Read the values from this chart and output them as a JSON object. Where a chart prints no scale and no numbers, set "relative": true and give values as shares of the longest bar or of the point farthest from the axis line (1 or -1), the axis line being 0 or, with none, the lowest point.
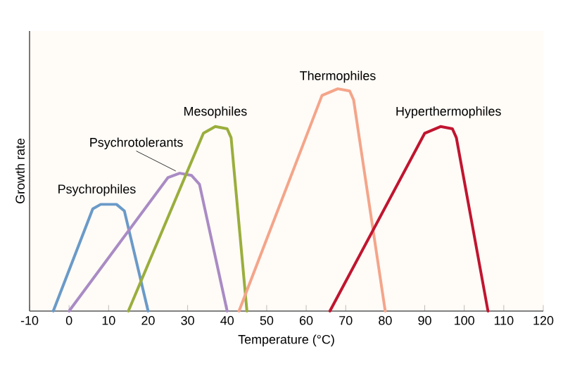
{
  "chart_data": {
    "type": "line",
    "relative": true,
    "xlabel": "Temperature (°C)",
    "ylabel": "Growth rate",
    "xlim": [
      -10,
      120
    ],
    "xticks": [
      -10,
      0,
      10,
      20,
      30,
      40,
      50,
      60,
      70,
      80,
      90,
      100,
      110,
      120
    ],
    "legend": false,
    "marker": "none",
    "line_style": "solid",
    "series": [
      {
        "name": "Psychrophiles",
        "color": "#6a9ac8",
        "x": [
          -4,
          6,
          8,
          12,
          14,
          20
        ],
        "values": [
          0,
          0.46,
          0.48,
          0.48,
          0.45,
          0
        ]
      },
      {
        "name": "Psychrotolerants",
        "color": "#a98bc4",
        "x": [
          0,
          25,
          28,
          31,
          33,
          40
        ],
        "values": [
          0,
          0.6,
          0.62,
          0.61,
          0.57,
          0
        ]
      },
      {
        "name": "Mesophiles",
        "color": "#9aae3c",
        "x": [
          15,
          34,
          37,
          40,
          41,
          45
        ],
        "values": [
          0,
          0.8,
          0.83,
          0.82,
          0.78,
          0
        ]
      },
      {
        "name": "Thermophiles",
        "color": "#f4a58a",
        "x": [
          43,
          64,
          68,
          71,
          72,
          80
        ],
        "values": [
          0,
          0.97,
          1,
          0.99,
          0.95,
          0
        ]
      },
      {
        "name": "Hyperthermophiles",
        "color": "#c0152f",
        "x": [
          66,
          90,
          94,
          97,
          98,
          106
        ],
        "values": [
          0,
          0.8,
          0.83,
          0.82,
          0.78,
          0
        ]
      }
    ]
  }
}
